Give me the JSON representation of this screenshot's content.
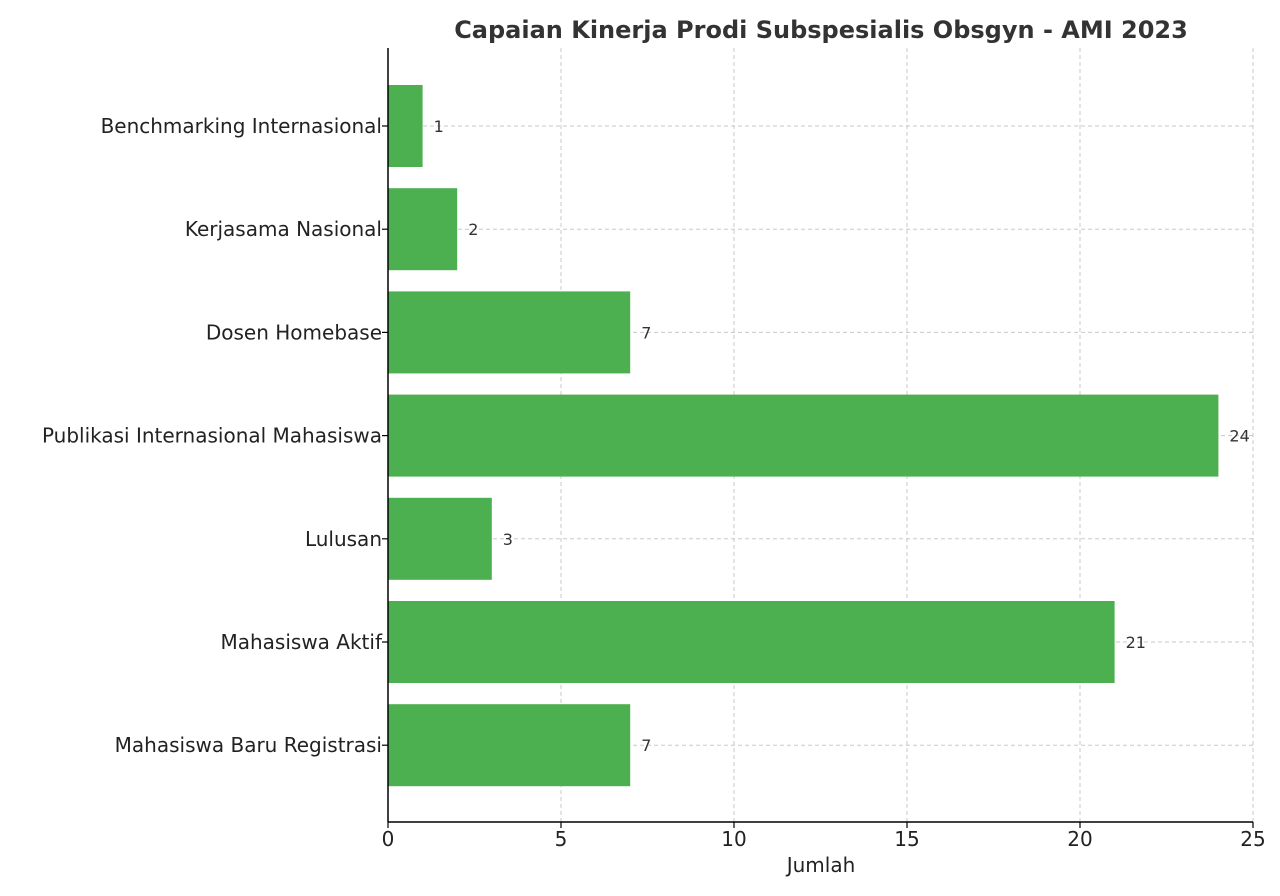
{
  "chart_data": {
    "type": "bar",
    "orientation": "horizontal",
    "title": "Capaian Kinerja Prodi Subspesialis Obsgyn - AMI 2023",
    "xlabel": "Jumlah",
    "ylabel": "",
    "xlim": [
      0,
      25
    ],
    "xticks": [
      0,
      5,
      10,
      15,
      20,
      25
    ],
    "categories": [
      "Benchmarking Internasional",
      "Kerjasama Nasional",
      "Dosen Homebase",
      "Publikasi Internasional Mahasiswa",
      "Lulusan",
      "Mahasiswa Aktif",
      "Mahasiswa Baru Registrasi"
    ],
    "values": [
      1,
      2,
      7,
      24,
      3,
      21,
      7
    ],
    "bar_color": "#4caf50",
    "grid": true,
    "legend": "none"
  }
}
